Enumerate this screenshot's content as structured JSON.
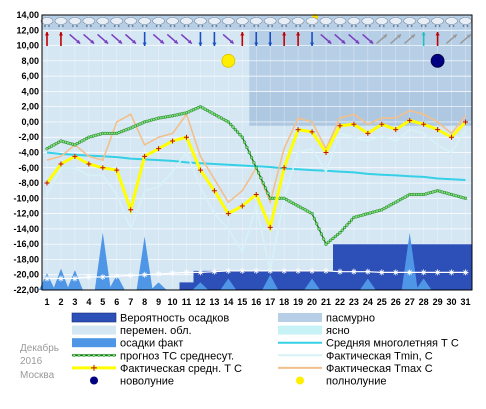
{
  "chart_data": {
    "type": "line",
    "meta": {
      "month": "Декабрь",
      "year": "2016",
      "city": "Москва"
    },
    "x": [
      1,
      2,
      3,
      4,
      5,
      6,
      7,
      8,
      9,
      10,
      11,
      12,
      13,
      14,
      15,
      16,
      17,
      18,
      19,
      20,
      21,
      22,
      23,
      24,
      25,
      26,
      27,
      28,
      29,
      30,
      31
    ],
    "x_ticks": [
      "1",
      "2",
      "3",
      "4",
      "5",
      "6",
      "7",
      "8",
      "9",
      "10",
      "11",
      "12",
      "13",
      "14",
      "15",
      "16",
      "17",
      "18",
      "19",
      "20",
      "21",
      "22",
      "23",
      "24",
      "25",
      "26",
      "27",
      "28",
      "29",
      "30",
      "31"
    ],
    "ylim": [
      -22,
      14
    ],
    "y_ticks": [
      "-22,00",
      "-20,00",
      "-18,00",
      "-16,00",
      "-14,00",
      "-12,00",
      "-10,00",
      "-8,00",
      "-6,00",
      "-4,00",
      "-2,00",
      "0,00",
      "2,00",
      "4,00",
      "6,00",
      "8,00",
      "10,00",
      "12,00",
      "14,00"
    ],
    "grid": true,
    "colors": {
      "overcast": "#b7cfe6",
      "variable_cloud": "#d6e7f4",
      "clear": "#c7f3f6",
      "precip_prob": "#2c4fb8",
      "precip_fact": "#4f96e6",
      "norm": "#35d0e6",
      "forecast": "#1a7a1a",
      "actual_mean": "#ffff00",
      "actual_min": "#d6f2f6",
      "actual_max": "#f2c08c",
      "new_moon": "#000080",
      "full_moon": "#ffee00",
      "snow_line": "#ffffff"
    },
    "series": [
      {
        "name": "Фактическая средн. Т С",
        "values": [
          -8.0,
          -5.5,
          -4.5,
          -5.5,
          -6.0,
          -6.3,
          -11.5,
          -4.5,
          -3.5,
          -2.5,
          -2.0,
          -6.3,
          -9.0,
          -12.0,
          -11.0,
          -9.5,
          -13.8,
          -6.0,
          -1.0,
          -1.3,
          -4.0,
          -0.5,
          -0.3,
          -1.5,
          -0.3,
          -1.0,
          0.2,
          -0.3,
          -1.0,
          -2.0,
          0.0
        ]
      },
      {
        "name": "Фактическая Tmin, C",
        "values": [
          -9.5,
          -6.0,
          -6.0,
          -7.0,
          -7.0,
          -9.5,
          -14.0,
          -9.0,
          -8.5,
          -6.5,
          -4.0,
          -8.5,
          -12.0,
          -14.0,
          -17.0,
          -11.0,
          -19.5,
          -10.0,
          -4.0,
          -3.5,
          -6.5,
          -1.5,
          -2.0,
          -2.5,
          -1.8,
          -2.5,
          -1.0,
          -1.5,
          -3.0,
          -4.0,
          -1.0
        ]
      },
      {
        "name": "Фактическая Tmax C",
        "values": [
          -5.0,
          -4.5,
          -3.0,
          -4.5,
          -5.0,
          0.0,
          1.0,
          -3.0,
          -2.0,
          -1.5,
          1.0,
          -4.5,
          -7.5,
          -10.5,
          -9.0,
          -6.0,
          -10.5,
          -3.5,
          0.5,
          0.0,
          -3.5,
          0.5,
          1.0,
          -0.3,
          0.5,
          0.5,
          1.5,
          1.0,
          0.0,
          -1.5,
          0.8
        ]
      },
      {
        "name": "прогноз ТС среднесут.",
        "values": [
          -3.5,
          -2.5,
          -3.0,
          -2.0,
          -1.5,
          -1.5,
          -0.8,
          0.0,
          0.5,
          0.8,
          1.2,
          2.0,
          1.0,
          0.0,
          -2.0,
          -6.0,
          -10.0,
          -10.0,
          -11.0,
          -12.0,
          -16.0,
          -14.5,
          -12.5,
          -12.0,
          -11.5,
          -10.5,
          -9.5,
          -9.5,
          -9.0,
          -9.5,
          -10.0
        ]
      },
      {
        "name": "Средняя многолетняя Т С",
        "values": [
          -4.0,
          -4.2,
          -4.3,
          -4.4,
          -4.5,
          -4.6,
          -4.8,
          -4.9,
          -5.0,
          -5.1,
          -5.3,
          -5.4,
          -5.5,
          -5.6,
          -5.7,
          -5.8,
          -5.9,
          -6.1,
          -6.2,
          -6.3,
          -6.4,
          -6.5,
          -6.6,
          -6.8,
          -6.9,
          -7.0,
          -7.1,
          -7.2,
          -7.4,
          -7.5,
          -7.6
        ]
      },
      {
        "name": "осадки факт",
        "values": [
          -22,
          -22,
          -22,
          -22,
          -22,
          -22,
          -21.2,
          -22,
          -22,
          -22,
          -22,
          -22,
          -22,
          -22,
          -22,
          -22,
          -22,
          -22,
          -22,
          -22,
          -22,
          -22,
          -22,
          -22,
          -22,
          -22,
          -22,
          -22,
          -22,
          -22,
          -22
        ]
      }
    ],
    "snow_line": [
      -20.5,
      -20.5,
      -20.5,
      -20.3,
      -20.3,
      -20.2,
      -20.1,
      -20.0,
      -19.9,
      -19.8,
      -19.7,
      -19.7,
      -19.6,
      -19.5,
      -19.5,
      -19.5,
      -19.5,
      -19.5,
      -19.5,
      -19.5,
      -19.5,
      -19.6,
      -19.6,
      -19.6,
      -19.7,
      -19.7,
      -19.7,
      -19.7,
      -19.7,
      -19.7,
      -19.7
    ],
    "precip_prob_top": [
      -22,
      -22,
      -22,
      -22,
      -22,
      -22,
      -22,
      -22,
      -22,
      -22,
      -21,
      -19.5,
      -19.5,
      -19.5,
      -19.5,
      -19.5,
      -19.5,
      -19.5,
      -19.5,
      -19.5,
      -19.5,
      -16,
      -16,
      -16,
      -16,
      -16,
      -16,
      -16,
      -16,
      -16,
      -16
    ],
    "precip_fact_peaks": [
      {
        "day": 1,
        "peak": -19.8
      },
      {
        "day": 2,
        "peak": -19.2
      },
      {
        "day": 3,
        "peak": -19.4
      },
      {
        "day": 5,
        "peak": -14.5
      },
      {
        "day": 6,
        "peak": -20.0
      },
      {
        "day": 8,
        "peak": -15.0
      },
      {
        "day": 9,
        "peak": -21.0
      },
      {
        "day": 12,
        "peak": -21.0
      },
      {
        "day": 14,
        "peak": -20.5
      },
      {
        "day": 17,
        "peak": -20.0
      },
      {
        "day": 20,
        "peak": -20.5
      },
      {
        "day": 24,
        "peak": -20.5
      },
      {
        "day": 27,
        "peak": -14.5
      },
      {
        "day": 28,
        "peak": -20.5
      }
    ],
    "overcast_bands": [
      {
        "from": 15.5,
        "to": 31.0,
        "y": [
          4,
          14
        ]
      },
      {
        "from": 15.5,
        "to": 31.0,
        "y": [
          -0.5,
          4
        ]
      }
    ],
    "moon_phases": [
      {
        "day": 14,
        "phase": "full"
      },
      {
        "day": 29,
        "phase": "new"
      }
    ],
    "weather_icons": [
      "rain-cloud",
      "snow-cloud",
      "snow-cloud",
      "snow-cloud",
      "snow-cloud",
      "snow-cloud",
      "snow-cloud",
      "snow-cloud",
      "snow-cloud",
      "snow-cloud",
      "snow-cloud",
      "snow-cloud",
      "snow-cloud",
      "snow-cloud",
      "snow-cloud",
      "snow-cloud",
      "snow-cloud",
      "snow-cloud",
      "snow-cloud",
      "sun-cloud",
      "snow-cloud",
      "snow-cloud",
      "snow-cloud",
      "snow-cloud",
      "snow-cloud",
      "snow-cloud",
      "snow-cloud",
      "snow-cloud",
      "snow-cloud",
      "snow-cloud",
      "snow-cloud"
    ],
    "wind": [
      {
        "dir": "up",
        "color": "#c00000"
      },
      {
        "dir": "up",
        "color": "#c00000"
      },
      {
        "dir": "down-right",
        "color": "#7a3fc0"
      },
      {
        "dir": "down-right",
        "color": "#7a3fc0"
      },
      {
        "dir": "down-right",
        "color": "#7a3fc0"
      },
      {
        "dir": "down-right",
        "color": "#7a3fc0"
      },
      {
        "dir": "down-right",
        "color": "#7a3fc0"
      },
      {
        "dir": "down",
        "color": "#1a4fc0"
      },
      {
        "dir": "down-right",
        "color": "#7a3fc0"
      },
      {
        "dir": "down-right",
        "color": "#7a3fc0"
      },
      {
        "dir": "down-right",
        "color": "#7a3fc0"
      },
      {
        "dir": "down",
        "color": "#1a4fc0"
      },
      {
        "dir": "down",
        "color": "#1a4fc0"
      },
      {
        "dir": "down-right",
        "color": "#7a3fc0"
      },
      {
        "dir": "up",
        "color": "#c00000"
      },
      {
        "dir": "down",
        "color": "#1a4fc0"
      },
      {
        "dir": "down",
        "color": "#1a4fc0"
      },
      {
        "dir": "up",
        "color": "#c00000"
      },
      {
        "dir": "up",
        "color": "#c00000"
      },
      {
        "dir": "down",
        "color": "#1a4fc0"
      },
      {
        "dir": "down-right",
        "color": "#7a3fc0"
      },
      {
        "dir": "down-right",
        "color": "#7a3fc0"
      },
      {
        "dir": "down-right",
        "color": "#7a3fc0"
      },
      {
        "dir": "down-right",
        "color": "#7a3fc0"
      },
      {
        "dir": "up-right",
        "color": "#9a9a9a"
      },
      {
        "dir": "up-right",
        "color": "#9a9a9a"
      },
      {
        "dir": "up-right",
        "color": "#9a9a9a"
      },
      {
        "dir": "up",
        "color": "#20c0c0"
      },
      {
        "dir": "up",
        "color": "#c00000"
      },
      {
        "dir": "up-right",
        "color": "#9a9a9a"
      },
      {
        "dir": "up-right",
        "color": "#9a9a9a"
      }
    ],
    "legend": [
      {
        "key": "precip_prob",
        "label": "Вероятность осадков"
      },
      {
        "key": "overcast",
        "label": "пасмурно"
      },
      {
        "key": "variable_cloud",
        "label": "перемен. обл."
      },
      {
        "key": "clear",
        "label": "ясно"
      },
      {
        "key": "precip_fact",
        "label": "осадки факт"
      },
      {
        "key": "norm",
        "label": "Средняя многолетняя Т С"
      },
      {
        "key": "forecast",
        "label": "прогноз ТС среднесут."
      },
      {
        "key": "actual_min",
        "label": "Фактическая Tmin, C"
      },
      {
        "key": "actual_mean",
        "label": "Фактическая средн. Т С"
      },
      {
        "key": "actual_max",
        "label": "Фактическая Tmax C"
      },
      {
        "key": "new_moon",
        "label": "новолуние"
      },
      {
        "key": "full_moon",
        "label": "полнолуние"
      }
    ]
  }
}
